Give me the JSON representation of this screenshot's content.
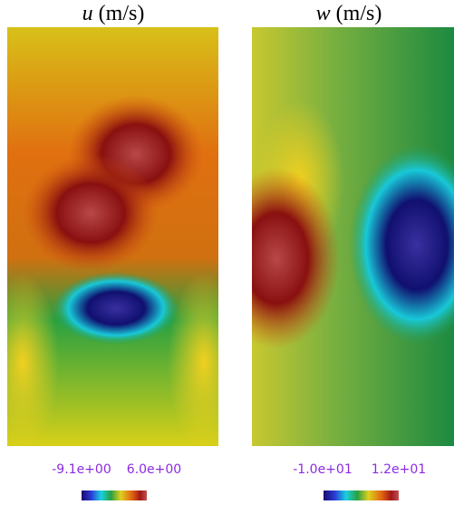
{
  "panels": [
    {
      "variable": "u",
      "unit": "(m/s)",
      "colorbar": {
        "min": "-9.1e+00",
        "max": "6.0e+00"
      }
    },
    {
      "variable": "w",
      "unit": "(m/s)",
      "colorbar": {
        "min": "-1.0e+01",
        "max": "1.2e+01"
      }
    }
  ]
}
